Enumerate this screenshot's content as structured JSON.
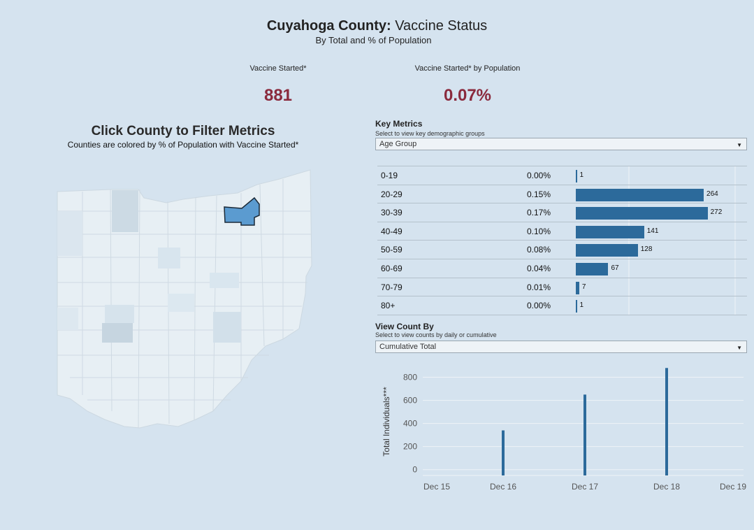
{
  "header": {
    "title_bold": "Cuyahoga County:",
    "title_rest": " Vaccine Status",
    "subtitle": "By Total and % of Population"
  },
  "kpis": [
    {
      "label": "Vaccine Started*",
      "value": "881"
    },
    {
      "label": "Vaccine Started* by Population",
      "value": "0.07%"
    }
  ],
  "map": {
    "title": "Click County to Filter Metrics",
    "subtitle": "Counties are colored by % of Population with Vaccine Started*"
  },
  "key_metrics": {
    "title": "Key Metrics",
    "subtitle": "Select to view key demographic groups",
    "dropdown_value": "Age Group"
  },
  "view_count": {
    "title": "View Count By",
    "subtitle": "Select to view counts by daily or cumulative",
    "dropdown_value": "Cumulative Total"
  },
  "colors": {
    "bar": "#2c6a9b",
    "kpi": "#8a2a3d",
    "selected_county": "#5b9bd0"
  },
  "chart_data": [
    {
      "type": "bar",
      "orientation": "horizontal",
      "title": "Key Metrics",
      "categories": [
        "0-19",
        "20-29",
        "30-39",
        "40-49",
        "50-59",
        "60-69",
        "70-79",
        "80+"
      ],
      "percent_labels": [
        "0.00%",
        "0.15%",
        "0.17%",
        "0.10%",
        "0.08%",
        "0.04%",
        "0.01%",
        "0.00%"
      ],
      "values": [
        1,
        264,
        272,
        141,
        128,
        67,
        7,
        1
      ],
      "xlim": [
        0,
        300
      ]
    },
    {
      "type": "bar",
      "title": "View Count By",
      "ylabel": "Total Individuals***",
      "x_ticks": [
        "Dec 15",
        "Dec 16",
        "Dec 17",
        "Dec 18",
        "Dec 19"
      ],
      "y_ticks": [
        0,
        200,
        400,
        600,
        800
      ],
      "ylim": [
        -50,
        900
      ],
      "series": [
        {
          "name": "Cumulative Total",
          "x": [
            "Dec 16",
            "Dec 17",
            "Dec 18"
          ],
          "values": [
            340,
            650,
            880
          ]
        }
      ]
    }
  ]
}
